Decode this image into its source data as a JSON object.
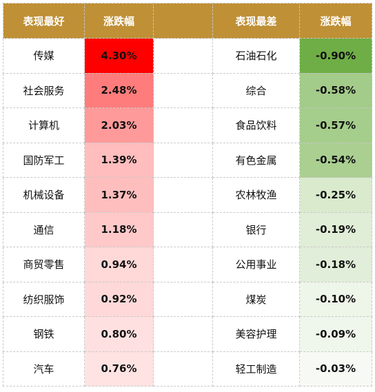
{
  "headers": {
    "best_name": "表现最好",
    "best_change": "涨跌幅",
    "worst_name": "表现最差",
    "worst_change": "涨跌幅"
  },
  "best": [
    {
      "name": "传媒",
      "change": "4.30%",
      "color": "#ff0000"
    },
    {
      "name": "社会服务",
      "change": "2.48%",
      "color": "#ff7c7c"
    },
    {
      "name": "计算机",
      "change": "2.03%",
      "color": "#ff9a9a"
    },
    {
      "name": "国防军工",
      "change": "1.39%",
      "color": "#ffbdbd"
    },
    {
      "name": "机械设备",
      "change": "1.37%",
      "color": "#ffbebe"
    },
    {
      "name": "通信",
      "change": "1.18%",
      "color": "#ffc9c9"
    },
    {
      "name": "商贸零售",
      "change": "0.94%",
      "color": "#ffd8d8"
    },
    {
      "name": "纺织服饰",
      "change": "0.92%",
      "color": "#ffd9d9"
    },
    {
      "name": "钢铁",
      "change": "0.80%",
      "color": "#ffe0e0"
    },
    {
      "name": "汽车",
      "change": "0.76%",
      "color": "#ffe3e3"
    }
  ],
  "worst": [
    {
      "name": "石油石化",
      "change": "-0.90%",
      "color": "#6fae46"
    },
    {
      "name": "综合",
      "change": "-0.58%",
      "color": "#a3cb89"
    },
    {
      "name": "食品饮料",
      "change": "-0.57%",
      "color": "#a5cd8b"
    },
    {
      "name": "有色金属",
      "change": "-0.54%",
      "color": "#aacf91"
    },
    {
      "name": "农林牧渔",
      "change": "-0.25%",
      "color": "#d9eacd"
    },
    {
      "name": "银行",
      "change": "-0.19%",
      "color": "#e0edd7"
    },
    {
      "name": "公用事业",
      "change": "-0.18%",
      "color": "#e1eed9"
    },
    {
      "name": "煤炭",
      "change": "-0.10%",
      "color": "#eef5e9"
    },
    {
      "name": "美容护理",
      "change": "-0.09%",
      "color": "#eff6eb"
    },
    {
      "name": "轻工制造",
      "change": "-0.03%",
      "color": "#f7faf4"
    }
  ]
}
